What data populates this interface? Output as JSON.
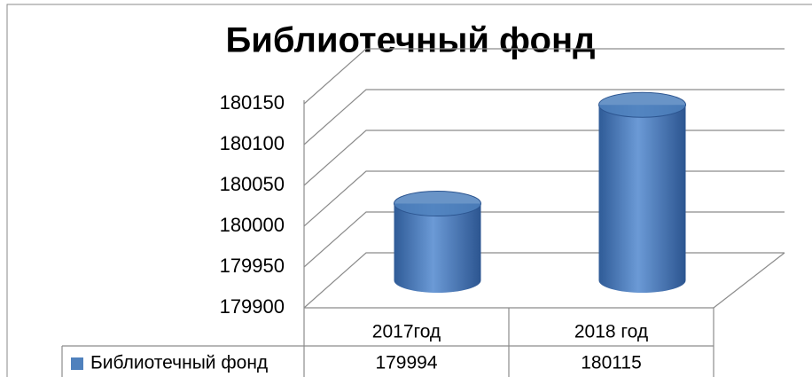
{
  "chart_data": {
    "type": "bar3d",
    "title": "Библиотечный фонд",
    "categories": [
      "2017год",
      "2018 год"
    ],
    "series": [
      {
        "name": "Библиотечный фонд",
        "color": "#4f81bd",
        "values": [
          179994,
          180115
        ]
      }
    ],
    "ylim": [
      179900,
      180150
    ],
    "yticks": [
      179900,
      179950,
      180000,
      180050,
      180100,
      180150
    ],
    "grid": true,
    "legend": "data-table"
  }
}
